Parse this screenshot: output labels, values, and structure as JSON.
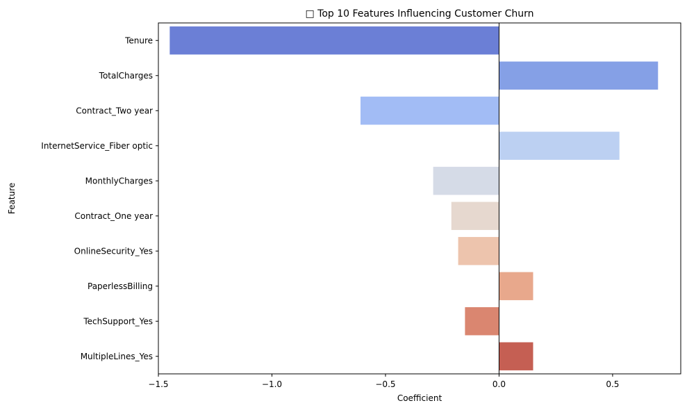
{
  "chart_data": {
    "type": "bar",
    "orientation": "horizontal",
    "title": "□ Top 10 Features Influencing Customer Churn",
    "xlabel": "Coefficient",
    "ylabel": "Feature",
    "xlim": [
      -1.5,
      0.8
    ],
    "x_ticks": [
      -1.5,
      -1.0,
      -0.5,
      0.0,
      0.5
    ],
    "x_tick_labels": [
      "−1.5",
      "−1.0",
      "−0.5",
      "0.0",
      "0.5"
    ],
    "grid": false,
    "zero_line": true,
    "categories": [
      "Tenure",
      "TotalCharges",
      "Contract_Two year",
      "InternetService_Fiber optic",
      "MonthlyCharges",
      "Contract_One year",
      "OnlineSecurity_Yes",
      "PaperlessBilling",
      "TechSupport_Yes",
      "MultipleLines_Yes"
    ],
    "values": [
      -1.45,
      0.7,
      -0.61,
      0.53,
      -0.29,
      -0.21,
      -0.18,
      0.15,
      -0.15,
      0.15
    ],
    "colors": [
      "#6b7fd6",
      "#85a0e6",
      "#a2bcf5",
      "#bcd0f2",
      "#d5dbe7",
      "#e6d8cf",
      "#edc4ad",
      "#e8a88c",
      "#da8670",
      "#c55f53"
    ]
  }
}
